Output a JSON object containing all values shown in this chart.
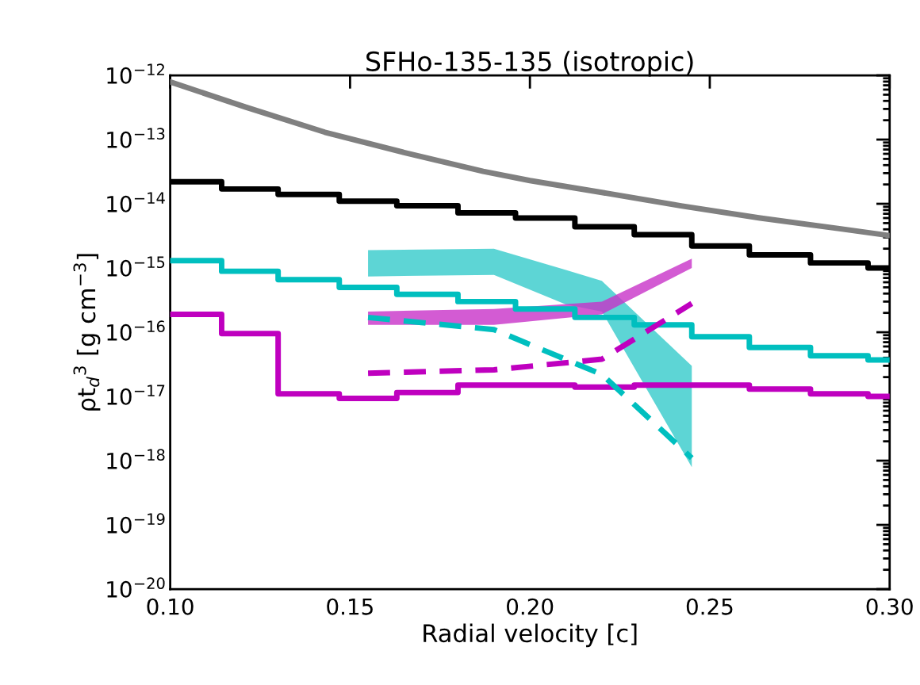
{
  "chart_data": {
    "type": "line",
    "title": "SFHo-135-135 (isotropic)",
    "xlabel": "Radial velocity [c]",
    "ylabel": "ρt$_{d}$$^{3}$ [g cm$^{−3}$]",
    "log": "y",
    "grid": false,
    "legend": false,
    "xlim": [
      0.1,
      0.3
    ],
    "xticks": [
      {
        "value": 0.1,
        "label": "0.10"
      },
      {
        "value": 0.15,
        "label": "0.15"
      },
      {
        "value": 0.2,
        "label": "0.20"
      },
      {
        "value": 0.25,
        "label": "0.25"
      },
      {
        "value": 0.3,
        "label": "0.30"
      }
    ],
    "ylim": [
      1e-20,
      1e-12
    ],
    "yticks": [
      {
        "value": 1e-20,
        "label": "10$^{−20}$"
      },
      {
        "value": 1e-19,
        "label": "10$^{−19}$"
      },
      {
        "value": 1e-18,
        "label": "10$^{−18}$"
      },
      {
        "value": 1e-17,
        "label": "10$^{−17}$"
      },
      {
        "value": 1e-16,
        "label": "10$^{−16}$"
      },
      {
        "value": 1e-15,
        "label": "10$^{−15}$"
      },
      {
        "value": 1e-14,
        "label": "10$^{−14}$"
      },
      {
        "value": 1e-13,
        "label": "10$^{−13}$"
      },
      {
        "value": 1e-12,
        "label": "10$^{−12}$"
      }
    ],
    "series": [
      {
        "color": "#808080",
        "line_style": "solid",
        "x": [
          0.1,
          0.121,
          0.143,
          0.165,
          0.187,
          0.2,
          0.22,
          0.242,
          0.264,
          0.286,
          0.3
        ],
        "values": [
          7.9e-13,
          3.2e-13,
          1.3e-13,
          6.3e-14,
          3.2e-14,
          2.3e-14,
          1.5e-14,
          9.3e-15,
          6e-15,
          4.1e-15,
          3.2e-15
        ]
      },
      {
        "type": "step",
        "color": "#000000",
        "line_style": "solid",
        "x": [
          0.1,
          0.1143,
          0.13,
          0.147,
          0.163,
          0.18,
          0.196,
          0.2125,
          0.229,
          0.245,
          0.261,
          0.278,
          0.294,
          0.3
        ],
        "values": [
          2.2e-14,
          1.7e-14,
          1.4e-14,
          1.1e-14,
          9.3e-15,
          7.2e-15,
          6e-15,
          4.4e-15,
          3.3e-15,
          2.2e-15,
          1.6e-15,
          1.2e-15,
          1e-15,
          1e-15
        ]
      },
      {
        "type": "step",
        "color": "#00bfbf",
        "line_style": "solid",
        "x": [
          0.1,
          0.1143,
          0.13,
          0.147,
          0.163,
          0.18,
          0.196,
          0.2125,
          0.229,
          0.245,
          0.261,
          0.278,
          0.294,
          0.3
        ],
        "values": [
          1.3e-15,
          8.9e-16,
          6.6e-16,
          5e-16,
          3.9e-16,
          3e-16,
          2.3e-16,
          1.7e-16,
          1.3e-16,
          8.5e-17,
          5.8e-17,
          4.3e-17,
          3.7e-17,
          3.7e-17
        ]
      },
      {
        "type": "step",
        "color": "#bf00bf",
        "line_style": "solid",
        "x": [
          0.1,
          0.1143,
          0.13,
          0.147,
          0.163,
          0.18,
          0.196,
          0.2125,
          0.229,
          0.245,
          0.261,
          0.278,
          0.294,
          0.3
        ],
        "values": [
          1.9e-16,
          9.5e-17,
          1.1e-17,
          9.3e-18,
          1.15e-17,
          1.5e-17,
          1.5e-17,
          1.4e-17,
          1.5e-17,
          1.5e-17,
          1.3e-17,
          1.1e-17,
          1e-17,
          1e-17
        ]
      },
      {
        "type": "area",
        "color": "#35cbcb",
        "x": [
          0.155,
          0.19,
          0.21,
          0.22,
          0.245
        ],
        "values": [
          null,
          null,
          null,
          null,
          null
        ],
        "lower": [
          7.4e-16,
          7.8e-16,
          2.7e-16,
          2.1e-16,
          7.9e-19
        ],
        "upper": [
          1.9e-15,
          2e-15,
          9.3e-16,
          6.3e-16,
          3e-17
        ]
      },
      {
        "type": "area",
        "color": "#c832c8",
        "x": [
          0.155,
          0.19,
          0.22,
          0.245
        ],
        "values": [
          null,
          null,
          null,
          null
        ],
        "lower": [
          1.3e-16,
          1.3e-16,
          1.9e-16,
          1e-15
        ],
        "upper": [
          2.1e-16,
          2.3e-16,
          3e-16,
          1.4e-15
        ]
      },
      {
        "color": "#bf00bf",
        "line_style": "dashed",
        "x": [
          0.155,
          0.19,
          0.22,
          0.245
        ],
        "values": [
          2.3e-17,
          2.6e-17,
          3.8e-17,
          2.8e-16
        ]
      },
      {
        "color": "#00bfbf",
        "line_style": "dashed",
        "x": [
          0.155,
          0.19,
          0.22,
          0.245
        ],
        "values": [
          1.7e-16,
          1.1e-16,
          2.2e-17,
          1.1e-18
        ]
      }
    ]
  }
}
